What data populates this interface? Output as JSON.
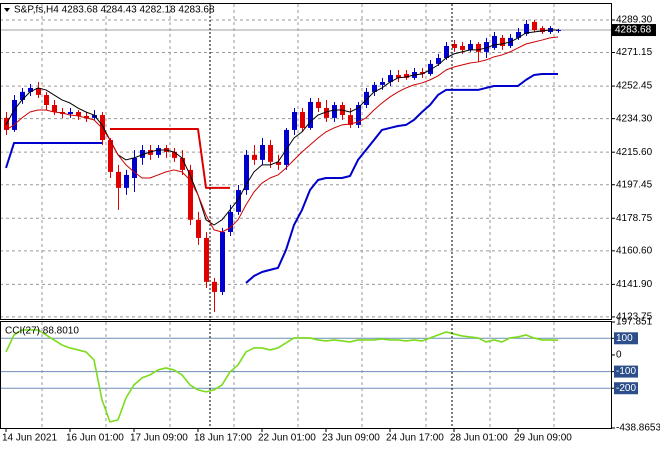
{
  "chart_data": [
    {
      "type": "candlestick",
      "title": "S&P,fs,H4 4283.68 4284.43 4282.18 4283.68",
      "categories": [
        "14 Jun 2021",
        null,
        null,
        null,
        null,
        null,
        null,
        null,
        "16 Jun 01:00",
        null,
        null,
        null,
        null,
        null,
        null,
        null,
        "17 Jun 09:00",
        null,
        null,
        null,
        null,
        null,
        null,
        null,
        "18 Jun 17:00",
        null,
        null,
        null,
        null,
        null,
        null,
        null,
        "22 Jun 01:00",
        null,
        null,
        null,
        null,
        null,
        null,
        null,
        "23 Jun 09:00",
        null,
        null,
        null,
        null,
        null,
        null,
        null,
        "24 Jun 17:00",
        null,
        null,
        null,
        null,
        null,
        null,
        null,
        "28 Jun 01:00",
        null,
        null,
        null,
        null,
        null,
        null,
        null,
        "29 Jun 09:00",
        null,
        null,
        null,
        null,
        null
      ],
      "open": [
        4234.7,
        4228.0,
        4244.7,
        4249.2,
        4251.4,
        4247.5,
        4241.9,
        4238.0,
        4236.9,
        4238.0,
        4235.8,
        4234.7,
        4236.3,
        4222.4,
        4204.6,
        4195.7,
        4201.2,
        4212.4,
        4216.8,
        4214.1,
        4217.9,
        4215.7,
        4212.4,
        4205.7,
        4177.9,
        4167.8,
        4143.3,
        4137.7,
        4171.1,
        4182.3,
        4194.5,
        4214.1,
        4211.3,
        4219.6,
        4210.2,
        4208.5,
        4228.0,
        4238.0,
        4229.1,
        4243.6,
        4240.2,
        4234.7,
        4241.9,
        4236.3,
        4230.8,
        4241.9,
        4249.2,
        4253.1,
        4254.7,
        4258.6,
        4259.2,
        4257.0,
        4260.3,
        4259.2,
        4264.8,
        4268.1,
        4275.9,
        4274.8,
        4272.6,
        4275.9,
        4271.5,
        4273.7,
        4279.3,
        4274.8,
        4279.3,
        4281.5,
        4288.2,
        4284.8,
        4282.6,
        4283.68
      ],
      "high": [
        4238.0,
        4247.5,
        4251.4,
        4253.6,
        4254.7,
        4249.2,
        4244.7,
        4240.2,
        4240.2,
        4239.1,
        4238.0,
        4239.1,
        4238.0,
        4223.5,
        4208.5,
        4205.7,
        4216.8,
        4219.6,
        4219.6,
        4219.6,
        4219.6,
        4217.9,
        4216.8,
        4208.5,
        4182.3,
        4171.1,
        4145.5,
        4173.4,
        4186.2,
        4197.3,
        4216.8,
        4219.6,
        4223.5,
        4222.4,
        4214.1,
        4229.1,
        4240.2,
        4240.2,
        4245.8,
        4245.8,
        4244.7,
        4243.6,
        4243.6,
        4240.2,
        4243.6,
        4251.4,
        4254.7,
        4257.0,
        4261.4,
        4261.4,
        4261.4,
        4262.5,
        4262.5,
        4267.0,
        4270.4,
        4277.0,
        4278.1,
        4277.0,
        4278.1,
        4277.0,
        4279.3,
        4282.6,
        4280.9,
        4281.5,
        4284.8,
        4289.3,
        4289.3,
        4285.9,
        4285.9,
        4284.43
      ],
      "low": [
        4225.2,
        4226.9,
        4242.5,
        4246.9,
        4245.8,
        4239.1,
        4236.3,
        4234.7,
        4234.7,
        4233.6,
        4232.4,
        4233.6,
        4219.6,
        4201.2,
        4183.4,
        4191.8,
        4193.4,
        4208.5,
        4211.3,
        4212.4,
        4212.4,
        4210.2,
        4202.9,
        4175.0,
        4163.9,
        4139.9,
        4126.5,
        4136.0,
        4168.9,
        4180.6,
        4191.8,
        4208.5,
        4208.5,
        4206.8,
        4205.7,
        4205.7,
        4225.2,
        4226.9,
        4228.0,
        4238.0,
        4232.4,
        4232.4,
        4233.6,
        4229.1,
        4229.1,
        4240.2,
        4246.9,
        4250.3,
        4252.5,
        4254.7,
        4255.9,
        4255.9,
        4257.0,
        4258.1,
        4263.7,
        4267.0,
        4271.5,
        4270.4,
        4271.5,
        4265.9,
        4268.1,
        4272.6,
        4272.6,
        4273.7,
        4278.1,
        4280.4,
        4282.6,
        4281.5,
        4281.5,
        4282.18
      ],
      "close": [
        4228.0,
        4244.7,
        4249.2,
        4251.4,
        4247.5,
        4241.9,
        4238.0,
        4236.9,
        4238.0,
        4235.8,
        4234.7,
        4236.3,
        4222.4,
        4204.6,
        4195.7,
        4202.9,
        4212.4,
        4216.8,
        4214.1,
        4217.9,
        4215.7,
        4212.4,
        4205.7,
        4177.9,
        4167.8,
        4143.3,
        4137.7,
        4171.1,
        4182.3,
        4194.5,
        4214.1,
        4211.3,
        4219.6,
        4210.2,
        4208.5,
        4228.0,
        4238.0,
        4229.1,
        4243.6,
        4240.2,
        4234.7,
        4241.9,
        4236.3,
        4230.8,
        4241.9,
        4249.2,
        4253.1,
        4254.7,
        4258.6,
        4257.0,
        4257.0,
        4260.3,
        4259.2,
        4264.8,
        4268.1,
        4274.8,
        4273.7,
        4272.6,
        4275.9,
        4271.5,
        4277.0,
        4280.4,
        4274.8,
        4279.3,
        4282.6,
        4287.1,
        4283.7,
        4282.6,
        4284.8,
        4283.68
      ],
      "up_color": "#0000cc",
      "down_color": "#e00000",
      "series": [
        {
          "color": "#000000",
          "width": 1,
          "values": [
            4230.8,
            4239.1,
            4244.7,
            4249.2,
            4251.4,
            4250.3,
            4247.5,
            4244.7,
            4243.0,
            4240.2,
            4238.0,
            4236.3,
            4230.8,
            4222.4,
            4214.1,
            4211.3,
            4212.4,
            4214.1,
            4215.7,
            4216.8,
            4216.8,
            4215.7,
            4212.4,
            4202.9,
            4191.8,
            4177.9,
            4175.0,
            4177.9,
            4183.4,
            4189.0,
            4197.3,
            4204.6,
            4208.5,
            4208.5,
            4210.2,
            4216.8,
            4223.5,
            4226.9,
            4232.4,
            4236.3,
            4238.0,
            4239.1,
            4239.1,
            4238.0,
            4240.2,
            4244.7,
            4249.2,
            4251.4,
            4254.7,
            4257.0,
            4257.5,
            4258.6,
            4259.2,
            4261.4,
            4264.2,
            4268.1,
            4270.4,
            4271.5,
            4272.6,
            4272.6,
            4273.7,
            4275.4,
            4275.9,
            4277.0,
            4279.3,
            4282.1,
            4282.6,
            4283.2,
            4283.7,
            4283.7
          ]
        },
        {
          "color": "#cc0000",
          "width": 1,
          "values": [
            4228.0,
            4230.8,
            4234.7,
            4238.0,
            4239.1,
            4239.1,
            4238.0,
            4237.5,
            4236.3,
            4235.8,
            4234.7,
            4233.6,
            4229.1,
            4222.4,
            4214.1,
            4208.5,
            4204.6,
            4201.2,
            4201.2,
            4202.9,
            4204.6,
            4205.7,
            4204.6,
            4200.1,
            4191.8,
            4180.6,
            4172.3,
            4171.1,
            4173.4,
            4177.9,
            4186.2,
            4193.4,
            4198.4,
            4201.2,
            4202.9,
            4206.8,
            4211.3,
            4215.7,
            4219.6,
            4223.5,
            4226.9,
            4229.1,
            4230.8,
            4231.3,
            4232.4,
            4234.7,
            4239.1,
            4243.0,
            4246.4,
            4249.2,
            4251.4,
            4253.1,
            4254.2,
            4255.9,
            4258.1,
            4261.4,
            4263.1,
            4264.2,
            4265.3,
            4265.9,
            4267.0,
            4268.7,
            4269.8,
            4271.5,
            4273.7,
            4275.9,
            4277.0,
            4278.1,
            4279.3,
            4279.8
          ]
        },
        {
          "color": "#0000cc",
          "width": 2,
          "values": [
            4206.8,
            4220.7,
            4220.7,
            4220.7,
            4220.7,
            4220.7,
            4220.7,
            4220.7,
            4220.7,
            4220.7,
            4220.7,
            4220.7,
            4220.7,
            null,
            null,
            null,
            null,
            null,
            null,
            null,
            null,
            null,
            null,
            null,
            null,
            null,
            null,
            null,
            null,
            null,
            4142.7,
            4146.6,
            4148.8,
            4150.0,
            4151.1,
            4161.1,
            4175.0,
            4183.4,
            4194.5,
            4200.1,
            4201.2,
            4201.2,
            4201.2,
            4202.3,
            4211.3,
            4216.8,
            4222.4,
            4228.0,
            4229.1,
            4230.2,
            4230.8,
            4233.6,
            4238.0,
            4241.9,
            4247.5,
            4250.3,
            4250.3,
            4250.3,
            4250.3,
            4250.3,
            4251.4,
            4252.5,
            4252.5,
            4252.5,
            4252.5,
            4255.9,
            4258.6,
            4259.2,
            4259.2,
            4259.2
          ]
        },
        {
          "color": "#dd0000",
          "width": 2,
          "values": [
            null,
            null,
            null,
            null,
            null,
            null,
            null,
            null,
            null,
            null,
            null,
            null,
            null,
            4228.5,
            4228.5,
            4228.5,
            4228.5,
            4228.5,
            4228.5,
            4228.5,
            4228.5,
            4228.5,
            4228.5,
            4228.5,
            4228.5,
            4195.7,
            4195.7,
            4195.7,
            4195.7,
            null,
            null,
            null,
            null,
            null,
            null,
            null,
            null,
            null,
            null,
            null,
            null,
            null,
            null,
            null,
            null,
            null,
            null,
            null,
            null,
            null,
            null,
            null,
            null,
            null,
            null,
            null,
            null,
            null,
            null,
            null,
            null,
            null,
            null,
            null,
            null,
            null,
            null,
            null,
            null,
            null
          ]
        }
      ],
      "last": 4283.68,
      "ylim": [
        4122.6,
        4298.2
      ],
      "yticks": [
        {
          "value": 4289.3,
          "label": "4289.30"
        },
        4271.15,
        4252.45,
        {
          "value": 4234.3,
          "label": "4234.30"
        },
        {
          "value": 4215.6,
          "label": "4215.60"
        },
        4197.45,
        4178.75,
        {
          "value": 4160.6,
          "label": "4160.60"
        },
        {
          "value": 4141.9,
          "label": "4141.90"
        },
        4123.75
      ],
      "grid": true
    },
    {
      "type": "line",
      "title": "CCI(27) 88.8010",
      "series": [
        {
          "color": "#7cdc1c",
          "values": [
            18,
            120,
            150,
            150,
            150,
            120,
            90,
            60,
            42,
            30,
            18,
            -30,
            -270,
            -402,
            -390,
            -258,
            -180,
            -138,
            -120,
            -90,
            -78,
            -90,
            -120,
            -180,
            -210,
            -222,
            -210,
            -180,
            -102,
            -60,
            18,
            42,
            42,
            30,
            42,
            72,
            102,
            102,
            102,
            90,
            84,
            90,
            84,
            78,
            90,
            90,
            90,
            96,
            90,
            90,
            84,
            90,
            84,
            102,
            120,
            138,
            126,
            114,
            108,
            102,
            78,
            90,
            78,
            102,
            108,
            120,
            102,
            90,
            90,
            88.801
          ]
        }
      ],
      "levels": [
        100,
        -100,
        -200
      ],
      "ylim": [
        -438.8653,
        197.851
      ],
      "yticks": [
        197.851,
        100,
        0,
        -100,
        -200,
        -438.8653
      ]
    }
  ]
}
